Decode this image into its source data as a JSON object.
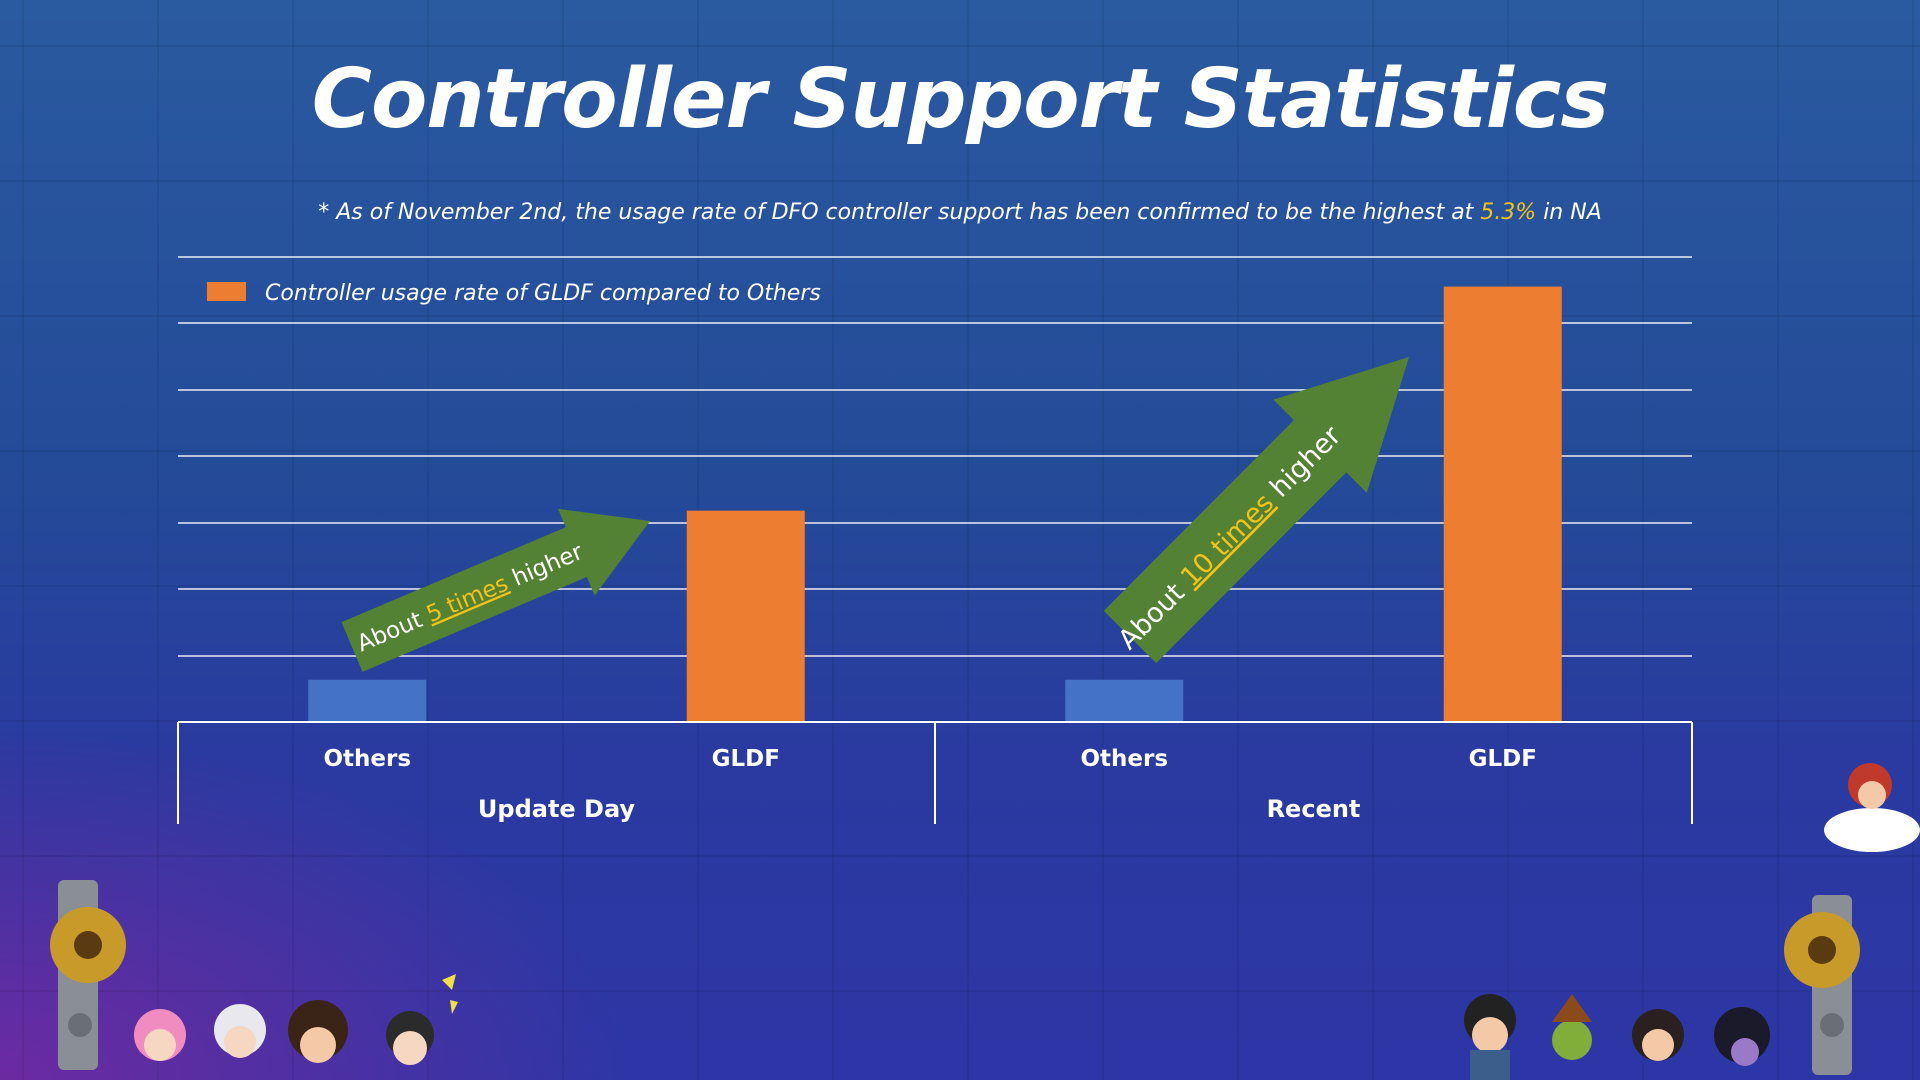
{
  "title": "Controller Support Statistics",
  "subtitle": {
    "prefix": "* As of November 2nd, the usage rate of DFO controller support has been confirmed to be the highest at ",
    "highlight": "5.3%",
    "suffix": " in NA"
  },
  "colors": {
    "others_bar": "#4472c4",
    "gldf_bar": "#ed7d31",
    "arrow": "#548235",
    "highlight": "#f5c218"
  },
  "chart_data": {
    "type": "bar",
    "legend": {
      "label": "Controller usage rate of GLDF compared to Others",
      "position": "top-left"
    },
    "groups": [
      {
        "label": "Update Day",
        "categories": [
          "Others",
          "GLDF"
        ],
        "values": [
          1,
          5
        ]
      },
      {
        "label": "Recent",
        "categories": [
          "Others",
          "GLDF"
        ],
        "values": [
          1,
          10.3
        ]
      }
    ],
    "ylim": [
      0,
      11
    ],
    "grid": true,
    "annotations": [
      {
        "prefix": "About ",
        "highlight": "5 times",
        "suffix": " higher",
        "group": "Update Day"
      },
      {
        "prefix": "About ",
        "highlight": "10 times",
        "suffix": " higher",
        "group": "Recent"
      }
    ]
  }
}
